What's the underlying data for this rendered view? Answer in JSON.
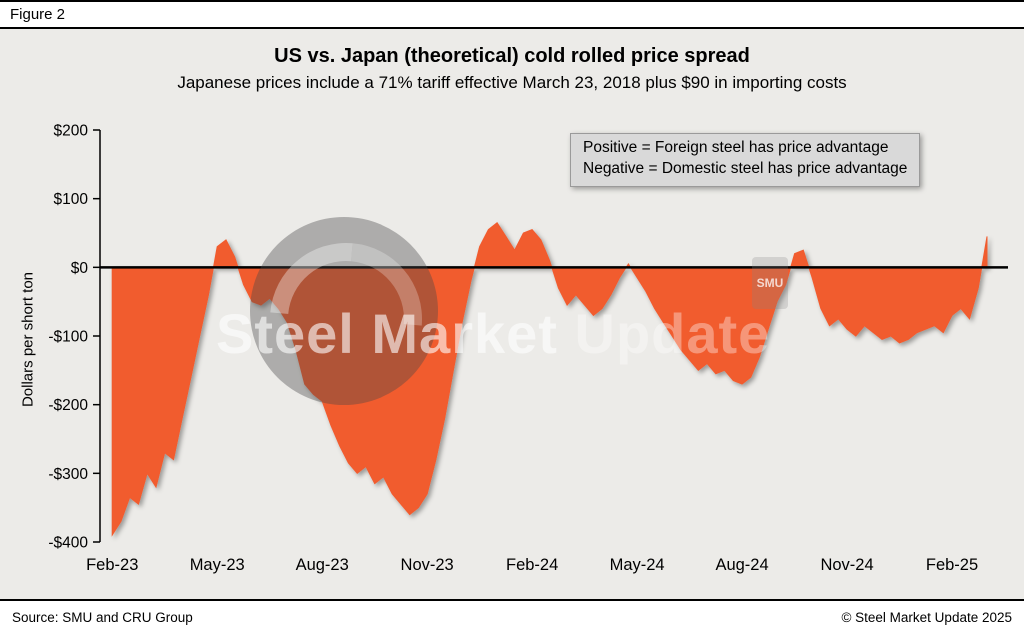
{
  "figure_label": "Figure 2",
  "footer": {
    "source": "Source: SMU and CRU Group",
    "copyright": "© Steel Market Update 2025"
  },
  "watermark": {
    "text_bold": "Steel Market ",
    "text_light": "Update",
    "small_logo": "SMU"
  },
  "colors": {
    "area": "#F15B2E",
    "background": "#ECEBE8",
    "zero_line": "#000000",
    "annotation_bg": "#D9D9D9"
  },
  "chart_data": {
    "type": "area",
    "title": "US vs. Japan (theoretical) cold rolled price spread",
    "subtitle": "Japanese prices include a 71% tariff effective March 23, 2018 plus $90 in importing costs",
    "ylabel": "Dollars per short ton",
    "xlabel": "",
    "annotations": [
      "Positive = Foreign steel has price advantage",
      "Negative = Domestic steel has price advantage"
    ],
    "legend": "none",
    "grid": "off",
    "ylim": [
      -400,
      200
    ],
    "y_ticks": [
      200,
      100,
      0,
      -100,
      -200,
      -300,
      -400
    ],
    "y_tick_labels": [
      "$200",
      "$100",
      "$0",
      "-$100",
      "-$200",
      "-$300",
      "-$400"
    ],
    "x_tick_labels": [
      "Feb-23",
      "May-23",
      "Aug-23",
      "Nov-23",
      "Feb-24",
      "May-24",
      "Aug-24",
      "Nov-24",
      "Feb-25"
    ],
    "x_tick_months": [
      0,
      3,
      6,
      9,
      12,
      15,
      18,
      21,
      24
    ],
    "xlim_months": [
      -0.35,
      25.6
    ],
    "month_step": 0.25,
    "x_unit": "months since Feb-2023 (weekly samples, approx. values read from chart, $/short ton)",
    "values": [
      -390,
      -370,
      -335,
      -345,
      -300,
      -320,
      -270,
      -280,
      -220,
      -160,
      -100,
      -40,
      30,
      40,
      15,
      -25,
      -50,
      -55,
      -45,
      -60,
      -80,
      -120,
      -170,
      -185,
      -195,
      -230,
      -260,
      -285,
      -300,
      -290,
      -315,
      -305,
      -330,
      -345,
      -360,
      -350,
      -330,
      -280,
      -220,
      -150,
      -80,
      -20,
      30,
      55,
      65,
      45,
      25,
      50,
      55,
      40,
      10,
      -30,
      -55,
      -40,
      -55,
      -70,
      -60,
      -40,
      -15,
      5,
      -15,
      -35,
      -60,
      -80,
      -100,
      -120,
      -135,
      -150,
      -140,
      -155,
      -150,
      -165,
      -170,
      -160,
      -130,
      -90,
      -50,
      -25,
      20,
      25,
      -15,
      -60,
      -85,
      -75,
      -90,
      -100,
      -85,
      -95,
      -105,
      -100,
      -110,
      -105,
      -95,
      -90,
      -85,
      -95,
      -70,
      -60,
      -75,
      -30,
      45
    ]
  }
}
